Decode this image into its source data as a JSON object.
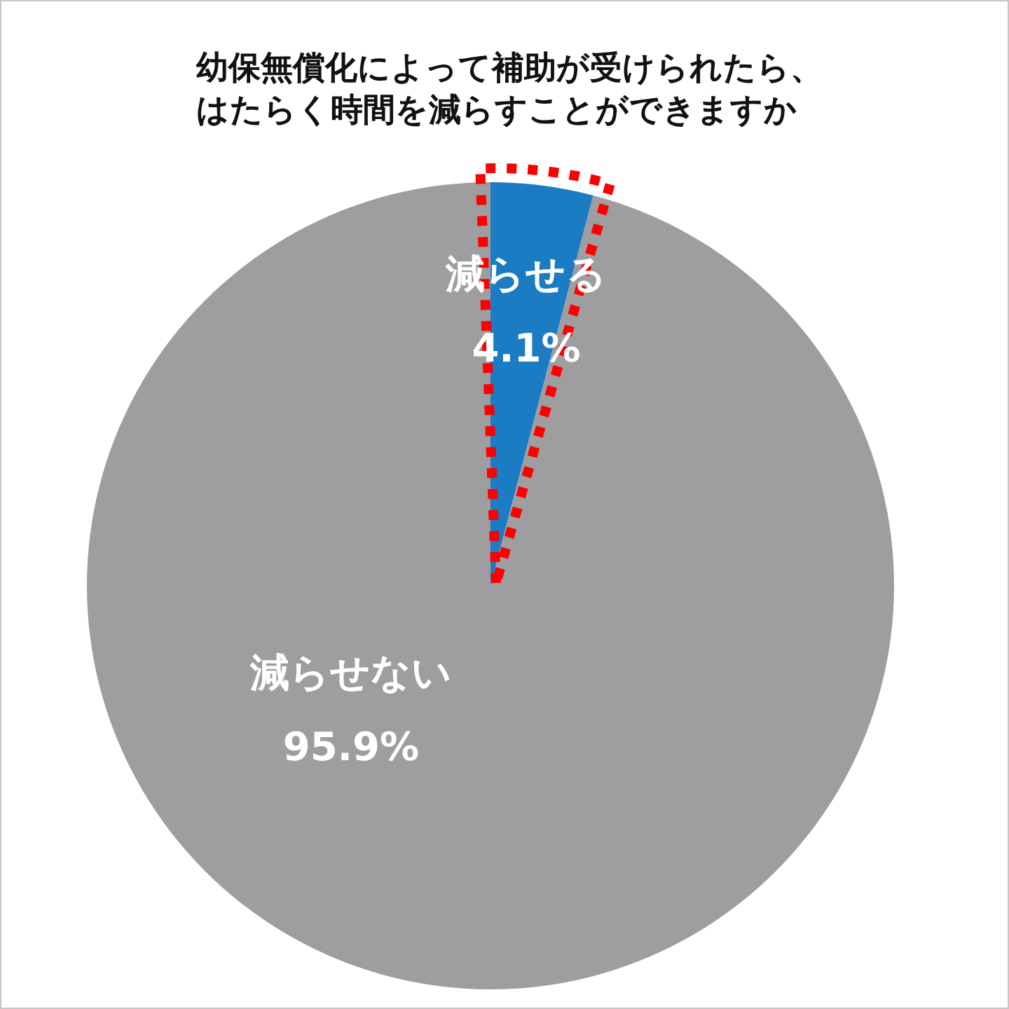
{
  "chart_data": {
    "type": "pie",
    "title": "幼保無償化によって補助が受けられたら、はたらく時間を減らすことができますか",
    "categories": [
      "減らせる",
      "減らせない"
    ],
    "values": [
      4.1,
      95.9
    ],
    "colors": [
      "#1b7bc3",
      "#9e9ea0"
    ],
    "value_labels": [
      "4.1%",
      "95.9%"
    ]
  }
}
